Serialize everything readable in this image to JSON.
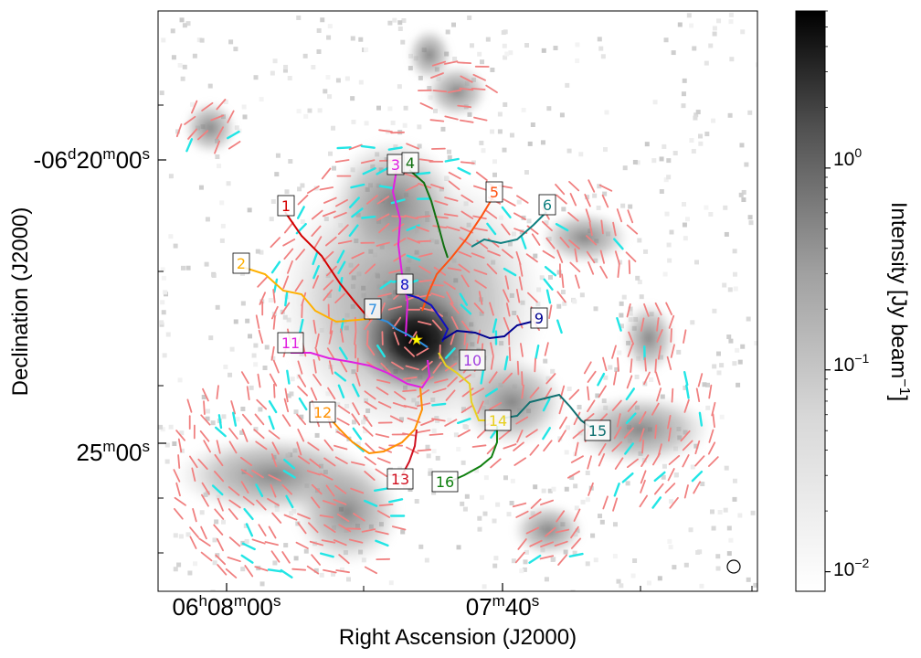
{
  "chart_data": {
    "type": "heatmap",
    "title": "",
    "xlabel": "Right Ascension (J2000)",
    "ylabel": "Declination (J2000)",
    "x_ticks": [
      {
        "prefix": "06",
        "sup1": "h",
        "mid": "08",
        "sup2": "m",
        "tail": "00",
        "sup3": "s",
        "value_s": 0
      },
      {
        "prefix": "",
        "sup1": "",
        "mid": "07",
        "sup2": "m",
        "tail": "40",
        "sup3": "s",
        "value_s": 80
      }
    ],
    "y_ticks": [
      {
        "prefix": "-06",
        "sup1": "d",
        "mid": "20",
        "sup2": "m",
        "tail": "00",
        "sup3": "s",
        "arcmin": 20
      },
      {
        "prefix": "",
        "sup1": "",
        "mid": "25",
        "sup2": "m",
        "tail": "00",
        "sup3": "s",
        "arcmin": 25
      }
    ],
    "colorbar": {
      "label_prefix": "Intensity [Jy beam",
      "label_exp": "−1",
      "label_suffix": "]",
      "scale": "log",
      "range": [
        0.008,
        6.0
      ],
      "ticks": [
        {
          "base": "10",
          "exp": "0",
          "value": 1.0
        },
        {
          "base": "10",
          "exp": "−1",
          "value": 0.1
        },
        {
          "base": "10",
          "exp": "−2",
          "value": 0.01
        }
      ],
      "colormap": "gray_r"
    },
    "hub_marker": "star",
    "hub_color": "#ffff00",
    "beam_marker": "circle",
    "vector_colors": {
      "main": "#f08080",
      "secondary": "#22e5e5"
    },
    "filaments": [
      {
        "id": "1",
        "color": "#d40000"
      },
      {
        "id": "2",
        "color": "#ffb000"
      },
      {
        "id": "3",
        "color": "#e020e0"
      },
      {
        "id": "4",
        "color": "#107010"
      },
      {
        "id": "5",
        "color": "#ff5010"
      },
      {
        "id": "6",
        "color": "#108080"
      },
      {
        "id": "7",
        "color": "#3090e0"
      },
      {
        "id": "8",
        "color": "#1010c0"
      },
      {
        "id": "9",
        "color": "#000090"
      },
      {
        "id": "10",
        "color": "#a040e0"
      },
      {
        "id": "11",
        "color": "#e020e0"
      },
      {
        "id": "12",
        "color": "#ff9000"
      },
      {
        "id": "13",
        "color": "#d01020"
      },
      {
        "id": "14",
        "color": "#e8d020"
      },
      {
        "id": "15",
        "color": "#107070"
      },
      {
        "id": "16",
        "color": "#108010"
      }
    ]
  }
}
